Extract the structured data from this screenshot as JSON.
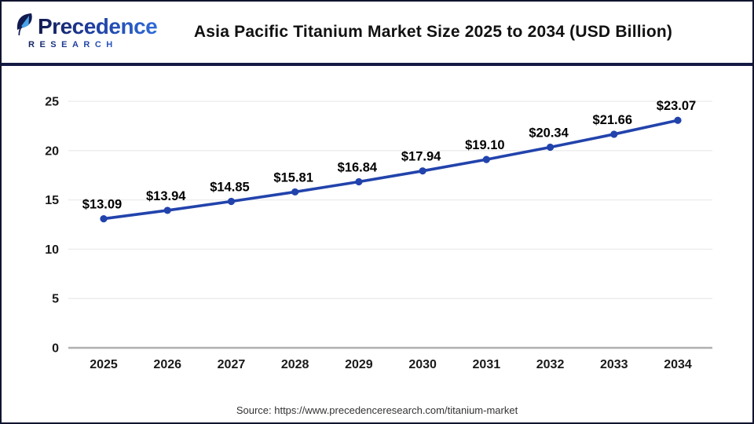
{
  "header": {
    "logo": {
      "name": "Precedence",
      "subname": "RESEARCH"
    },
    "title": "Asia Pacific Titanium Market Size 2025 to 2034 (USD Billion)"
  },
  "chart_data": {
    "type": "line",
    "title": "Asia Pacific Titanium Market Size 2025 to 2034 (USD Billion)",
    "categories": [
      "2025",
      "2026",
      "2027",
      "2028",
      "2029",
      "2030",
      "2031",
      "2032",
      "2033",
      "2034"
    ],
    "values": [
      13.09,
      13.94,
      14.85,
      15.81,
      16.84,
      17.94,
      19.1,
      20.34,
      21.66,
      23.07
    ],
    "point_labels": [
      "$13.09",
      "$13.94",
      "$14.85",
      "$15.81",
      "$16.84",
      "$17.94",
      "$19.10",
      "$20.34",
      "$21.66",
      "$23.07"
    ],
    "xlabel": "",
    "ylabel": "",
    "ylim": [
      0,
      25
    ],
    "yticks": [
      0,
      5,
      10,
      15,
      20,
      25
    ],
    "grid": true,
    "legend": "none",
    "line_color": "#2243ac",
    "marker_color": "#2243ac",
    "gridline_color": "#ebebeb",
    "axis_line_color": "#b0b0b0",
    "tick_label_color": "#1a1a1a",
    "data_label_color": "#000000"
  },
  "footer": {
    "source": "Source: https://www.precedenceresearch.com/titanium-market"
  },
  "colors": {
    "header_separator": "#141a44",
    "page_border": "#10142e",
    "logo_navy": "#121b4f",
    "logo_blue": "#2f6bd8",
    "logo_accent_light": "#4aa3e8"
  }
}
